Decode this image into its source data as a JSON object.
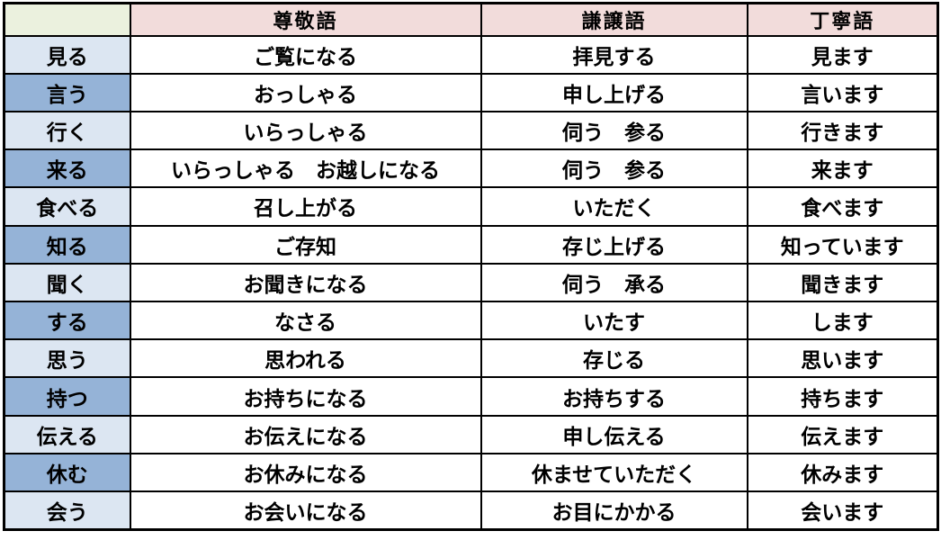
{
  "table": {
    "corner": "",
    "columns": [
      "尊敬語",
      "謙譲語",
      "丁寧語"
    ],
    "rows": [
      {
        "verb": "見る",
        "sonkeigo": "ご覧になる",
        "kenjougo": "拝見する",
        "teineigo": "見ます"
      },
      {
        "verb": "言う",
        "sonkeigo": "おっしゃる",
        "kenjougo": "申し上げる",
        "teineigo": "言います"
      },
      {
        "verb": "行く",
        "sonkeigo": "いらっしゃる",
        "kenjougo": "伺う　参る",
        "teineigo": "行きます"
      },
      {
        "verb": "来る",
        "sonkeigo": "いらっしゃる　お越しになる",
        "kenjougo": "伺う　参る",
        "teineigo": "来ます"
      },
      {
        "verb": "食べる",
        "sonkeigo": "召し上がる",
        "kenjougo": "いただく",
        "teineigo": "食べます"
      },
      {
        "verb": "知る",
        "sonkeigo": "ご存知",
        "kenjougo": "存じ上げる",
        "teineigo": "知っています"
      },
      {
        "verb": "聞く",
        "sonkeigo": "お聞きになる",
        "kenjougo": "伺う　承る",
        "teineigo": "聞きます"
      },
      {
        "verb": "する",
        "sonkeigo": "なさる",
        "kenjougo": "いたす",
        "teineigo": "します"
      },
      {
        "verb": "思う",
        "sonkeigo": "思われる",
        "kenjougo": "存じる",
        "teineigo": "思います"
      },
      {
        "verb": "持つ",
        "sonkeigo": "お持ちになる",
        "kenjougo": "お持ちする",
        "teineigo": "持ちます"
      },
      {
        "verb": "伝える",
        "sonkeigo": "お伝えになる",
        "kenjougo": "申し伝える",
        "teineigo": "伝えます"
      },
      {
        "verb": "休む",
        "sonkeigo": "お休みになる",
        "kenjougo": "休ませていただく",
        "teineigo": "休みます"
      },
      {
        "verb": "会う",
        "sonkeigo": "お会いになる",
        "kenjougo": "お目にかかる",
        "teineigo": "会います"
      }
    ],
    "colors": {
      "corner_bg": "#ebf1de",
      "header_bg": "#f2dcdb",
      "verb_light_bg": "#dce6f2",
      "verb_dark_bg": "#95b3d7",
      "border": "#000000",
      "text": "#000000"
    }
  }
}
